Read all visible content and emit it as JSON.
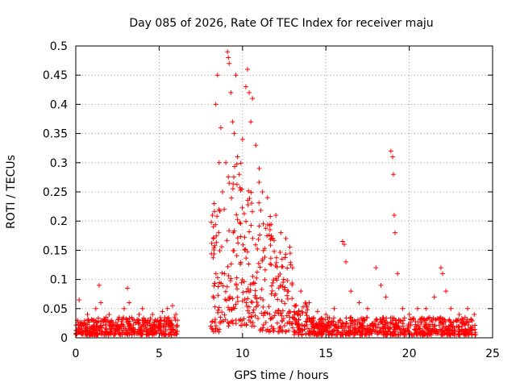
{
  "chart_data": {
    "type": "scatter",
    "title": "Day 085 of 2026, Rate Of TEC Index for receiver maju",
    "xlabel": "GPS time / hours",
    "ylabel": "ROTI / TECUs",
    "xlim": [
      0,
      25
    ],
    "ylim": [
      0,
      0.5
    ],
    "grid": true,
    "legend": "none",
    "marker": "+",
    "color": "#ff0000",
    "x_ticks": [
      "0",
      "5",
      "10",
      "15",
      "20",
      "25"
    ],
    "y_ticks": [
      "0",
      "0.05",
      "0.1",
      "0.15",
      "0.2",
      "0.25",
      "0.3",
      "0.35",
      "0.4",
      "0.45",
      "0.5"
    ],
    "x_tick_values": [
      0,
      5,
      10,
      15,
      20,
      25
    ],
    "y_tick_values": [
      0,
      0.05,
      0.1,
      0.15,
      0.2,
      0.25,
      0.3,
      0.35,
      0.4,
      0.45,
      0.5
    ],
    "series": [
      {
        "name": "ROTI",
        "points": [
          [
            0.1,
            0.03
          ],
          [
            0.2,
            0.065
          ],
          [
            0.3,
            0.02
          ],
          [
            0.5,
            0.025
          ],
          [
            0.7,
            0.04
          ],
          [
            1.0,
            0.03
          ],
          [
            1.2,
            0.05
          ],
          [
            1.4,
            0.09
          ],
          [
            1.5,
            0.06
          ],
          [
            1.8,
            0.03
          ],
          [
            2.0,
            0.04
          ],
          [
            2.3,
            0.02
          ],
          [
            2.6,
            0.035
          ],
          [
            2.9,
            0.05
          ],
          [
            3.1,
            0.085
          ],
          [
            3.2,
            0.06
          ],
          [
            3.5,
            0.03
          ],
          [
            3.8,
            0.04
          ],
          [
            4.0,
            0.05
          ],
          [
            4.3,
            0.03
          ],
          [
            4.6,
            0.04
          ],
          [
            4.9,
            0.03
          ],
          [
            5.2,
            0.045
          ],
          [
            5.5,
            0.05
          ],
          [
            5.8,
            0.055
          ],
          [
            6.0,
            0.04
          ],
          [
            6.1,
            0.03
          ],
          [
            8.1,
            0.02
          ],
          [
            8.2,
            0.21
          ],
          [
            8.3,
            0.23
          ],
          [
            8.4,
            0.4
          ],
          [
            8.5,
            0.45
          ],
          [
            8.6,
            0.3
          ],
          [
            8.7,
            0.36
          ],
          [
            8.8,
            0.25
          ],
          [
            8.9,
            0.22
          ],
          [
            9.0,
            0.3
          ],
          [
            9.1,
            0.49
          ],
          [
            9.15,
            0.48
          ],
          [
            9.2,
            0.47
          ],
          [
            9.3,
            0.42
          ],
          [
            9.4,
            0.37
          ],
          [
            9.5,
            0.35
          ],
          [
            9.6,
            0.45
          ],
          [
            9.7,
            0.31
          ],
          [
            9.8,
            0.28
          ],
          [
            10.0,
            0.34
          ],
          [
            10.2,
            0.43
          ],
          [
            10.3,
            0.46
          ],
          [
            10.4,
            0.42
          ],
          [
            10.5,
            0.37
          ],
          [
            10.6,
            0.41
          ],
          [
            10.8,
            0.33
          ],
          [
            11.0,
            0.29
          ],
          [
            11.2,
            0.25
          ],
          [
            11.5,
            0.24
          ],
          [
            12.0,
            0.21
          ],
          [
            12.3,
            0.18
          ],
          [
            12.6,
            0.17
          ],
          [
            13.0,
            0.12
          ],
          [
            13.5,
            0.08
          ],
          [
            14.0,
            0.06
          ],
          [
            14.5,
            0.045
          ],
          [
            15.0,
            0.04
          ],
          [
            15.5,
            0.05
          ],
          [
            16.0,
            0.165
          ],
          [
            16.1,
            0.16
          ],
          [
            16.2,
            0.13
          ],
          [
            16.5,
            0.08
          ],
          [
            17.0,
            0.06
          ],
          [
            17.5,
            0.05
          ],
          [
            18.0,
            0.12
          ],
          [
            18.3,
            0.09
          ],
          [
            18.6,
            0.07
          ],
          [
            18.9,
            0.32
          ],
          [
            19.0,
            0.31
          ],
          [
            19.05,
            0.28
          ],
          [
            19.1,
            0.21
          ],
          [
            19.15,
            0.18
          ],
          [
            19.3,
            0.11
          ],
          [
            19.6,
            0.05
          ],
          [
            20.0,
            0.04
          ],
          [
            20.5,
            0.05
          ],
          [
            21.0,
            0.05
          ],
          [
            21.5,
            0.07
          ],
          [
            21.9,
            0.12
          ],
          [
            22.0,
            0.11
          ],
          [
            22.2,
            0.08
          ],
          [
            22.5,
            0.05
          ],
          [
            23.0,
            0.04
          ],
          [
            23.5,
            0.05
          ],
          [
            23.9,
            0.04
          ]
        ],
        "envelope": [
          {
            "x0": 0.0,
            "x1": 6.15,
            "ymin": 0.005,
            "ymax": 0.035
          },
          {
            "x0": 8.1,
            "x1": 9.0,
            "ymin": 0.01,
            "ymax": 0.22
          },
          {
            "x0": 9.0,
            "x1": 10.0,
            "ymin": 0.02,
            "ymax": 0.3
          },
          {
            "x0": 10.0,
            "x1": 11.0,
            "ymin": 0.02,
            "ymax": 0.27
          },
          {
            "x0": 11.0,
            "x1": 12.0,
            "ymin": 0.01,
            "ymax": 0.22
          },
          {
            "x0": 12.0,
            "x1": 13.0,
            "ymin": 0.01,
            "ymax": 0.16
          },
          {
            "x0": 13.0,
            "x1": 14.0,
            "ymin": 0.005,
            "ymax": 0.06
          },
          {
            "x0": 14.0,
            "x1": 24.0,
            "ymin": 0.005,
            "ymax": 0.035
          }
        ]
      }
    ]
  }
}
